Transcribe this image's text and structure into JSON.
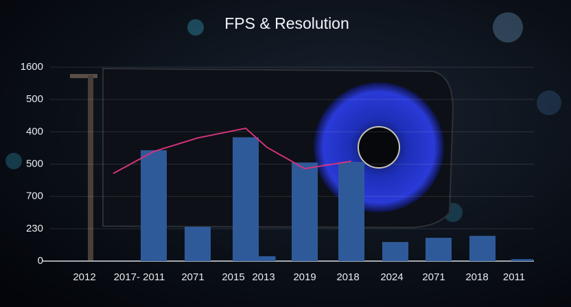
{
  "chart_data": {
    "type": "bar",
    "title": "FPS & Resolution",
    "categories": [
      "2012",
      "2017- 2011",
      "2071",
      "2015",
      "2013",
      "2019",
      "2018",
      "2024",
      "2071",
      "2018",
      "2011"
    ],
    "series": [
      {
        "type": "bar",
        "color": "#2f5a9a",
        "values": [
          null,
          3.43,
          1.06,
          3.83,
          0.15,
          3.05,
          3.07,
          0.59,
          0.72,
          0.78,
          0.06
        ]
      },
      {
        "type": "line",
        "color": "#d4337e",
        "values": [
          2.71,
          3.39,
          3.81,
          4.11,
          3.52,
          2.86,
          3.09,
          null,
          null,
          null,
          null
        ]
      }
    ],
    "ylim": [
      0,
      6
    ],
    "yticks": [
      0,
      {
        "value": 1,
        "label": "230"
      },
      {
        "value": 2,
        "label": "700"
      },
      {
        "value": 3,
        "label": "500"
      },
      {
        "value": 4,
        "label": "400"
      },
      {
        "value": 5,
        "label": "500"
      },
      {
        "value": 6,
        "label": "1600"
      }
    ],
    "grid": true
  }
}
